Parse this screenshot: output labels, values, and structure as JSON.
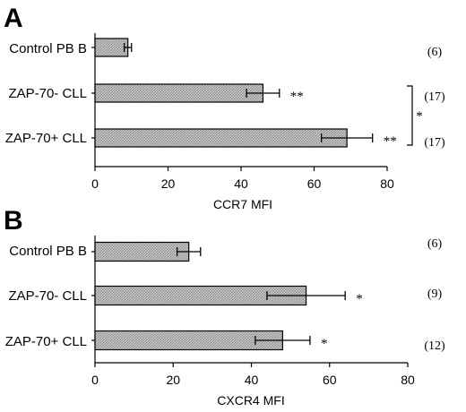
{
  "chart_data": [
    {
      "type": "bar",
      "orientation": "horizontal",
      "panel_label": "A",
      "categories": [
        "Control PB B",
        "ZAP-70- CLL",
        "ZAP-70+ CLL"
      ],
      "values": [
        9,
        46,
        69
      ],
      "errors": [
        1,
        4.5,
        7
      ],
      "significance": [
        "",
        "**",
        "**"
      ],
      "counts": [
        "(6)",
        "(17)",
        "(17)"
      ],
      "bracket": {
        "from": 1,
        "to": 2,
        "label": "*"
      },
      "xlabel": "CCR7 MFI",
      "xlim": [
        0,
        80
      ],
      "xticks": [
        0,
        20,
        40,
        60,
        80
      ],
      "grid": false
    },
    {
      "type": "bar",
      "orientation": "horizontal",
      "panel_label": "B",
      "categories": [
        "Control PB B",
        "ZAP-70- CLL",
        "ZAP-70+ CLL"
      ],
      "values": [
        24,
        54,
        48
      ],
      "errors": [
        3,
        10,
        7
      ],
      "significance": [
        "",
        "*",
        "*"
      ],
      "counts": [
        "(6)",
        "(9)",
        "(12)"
      ],
      "xlabel": "CXCR4 MFI",
      "xlim": [
        0,
        80
      ],
      "xticks": [
        0,
        20,
        40,
        60,
        80
      ],
      "grid": false
    }
  ]
}
